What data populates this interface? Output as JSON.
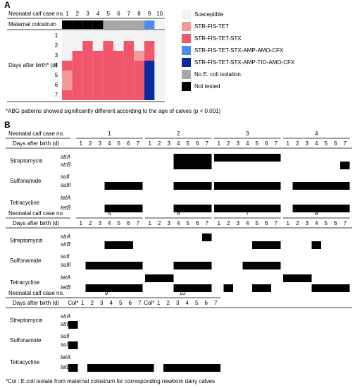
{
  "panel_a": {
    "label": "A",
    "header": "Neonatal calf case no.",
    "cases": [
      1,
      2,
      3,
      4,
      5,
      6,
      7,
      8,
      9,
      10
    ],
    "colostrum_label": "Maternal colostrum",
    "colostrum": [
      6,
      6,
      6,
      6,
      5,
      5,
      5,
      5,
      3,
      0
    ],
    "days_label": "Days after birth* (d)",
    "days": [
      1,
      2,
      3,
      4,
      5,
      6,
      7
    ],
    "grid": [
      [
        0,
        0,
        0,
        0,
        0,
        0,
        0,
        0,
        0,
        0
      ],
      [
        0,
        0,
        2,
        0,
        2,
        0,
        2,
        0,
        2,
        0
      ],
      [
        0,
        2,
        2,
        2,
        2,
        2,
        2,
        1,
        2,
        0
      ],
      [
        2,
        2,
        2,
        2,
        2,
        2,
        2,
        2,
        4,
        0
      ],
      [
        1,
        2,
        2,
        2,
        2,
        2,
        2,
        2,
        4,
        0
      ],
      [
        1,
        2,
        2,
        2,
        2,
        2,
        2,
        2,
        4,
        0
      ],
      [
        2,
        2,
        2,
        2,
        2,
        2,
        2,
        2,
        4,
        0
      ]
    ],
    "legend": [
      {
        "name": "Susceptible",
        "color": "#f3f3f3"
      },
      {
        "name": "STR-FIS-TET",
        "color": "#f59a9a"
      },
      {
        "name": "STR-FIS-TET-STX",
        "color": "#f0566c"
      },
      {
        "name": "STR-FIS-TET-STX-AMP-AMO-CFX",
        "color": "#4a8cf0"
      },
      {
        "name": "STR-FIS-TET-STX-AMP-TIO-AMO-CFX",
        "color": "#0c2aa0"
      },
      {
        "name": "No E. coli isolation",
        "color": "#a8a8a8"
      },
      {
        "name": "Not tested",
        "color": "#000000"
      }
    ],
    "footnote": "*ABG patterns showed significantly different according to the age of calves (p < 0.001)"
  },
  "panel_b": {
    "label": "B",
    "header": "Neonatal calf case no.",
    "days_label": "Days after birth (d)",
    "days": [
      1,
      2,
      3,
      4,
      5,
      6,
      7
    ],
    "col_label": "Col*",
    "classes": [
      {
        "name": "Streptomycin",
        "genes": [
          "strA",
          "strB"
        ]
      },
      {
        "name": "Sulfonamide",
        "genes": [
          "sulI",
          "sulII"
        ]
      },
      {
        "name": "Tetracycline",
        "genes": [
          "tetA",
          "tetB"
        ]
      }
    ],
    "blocks": [
      {
        "calves": [
          {
            "case": 1,
            "genes": [
              [
                0,
                0,
                0,
                0,
                0,
                0,
                0
              ],
              [
                0,
                0,
                0,
                0,
                0,
                0,
                0
              ],
              [
                0,
                0,
                0,
                0,
                0,
                0,
                0
              ],
              [
                0,
                0,
                0,
                1,
                1,
                1,
                1
              ],
              [
                0,
                0,
                0,
                0,
                0,
                0,
                0
              ],
              [
                0,
                0,
                0,
                1,
                1,
                1,
                1
              ]
            ]
          },
          {
            "case": 2,
            "genes": [
              [
                0,
                0,
                0,
                1,
                1,
                1,
                1
              ],
              [
                0,
                0,
                0,
                1,
                1,
                1,
                1
              ],
              [
                0,
                0,
                0,
                0,
                0,
                0,
                0
              ],
              [
                0,
                0,
                0,
                1,
                1,
                1,
                1
              ],
              [
                0,
                0,
                0,
                0,
                0,
                0,
                0
              ],
              [
                0,
                0,
                0,
                1,
                1,
                1,
                1
              ]
            ]
          },
          {
            "case": 3,
            "genes": [
              [
                1,
                1,
                1,
                1,
                1,
                1,
                1
              ],
              [
                0,
                0,
                0,
                0,
                0,
                0,
                0
              ],
              [
                0,
                0,
                0,
                0,
                0,
                0,
                0
              ],
              [
                1,
                1,
                1,
                1,
                1,
                1,
                1
              ],
              [
                0,
                0,
                0,
                0,
                0,
                0,
                0
              ],
              [
                1,
                1,
                1,
                1,
                1,
                1,
                1
              ]
            ]
          },
          {
            "case": 4,
            "genes": [
              [
                0,
                0,
                0,
                0,
                0,
                0,
                0
              ],
              [
                0,
                0,
                0,
                0,
                0,
                0,
                1
              ],
              [
                0,
                0,
                0,
                0,
                0,
                0,
                0
              ],
              [
                0,
                1,
                1,
                1,
                1,
                1,
                1
              ],
              [
                0,
                0,
                0,
                0,
                0,
                0,
                0
              ],
              [
                0,
                1,
                1,
                1,
                1,
                1,
                1
              ]
            ]
          }
        ]
      },
      {
        "calves": [
          {
            "case": 5,
            "genes": [
              [
                0,
                0,
                0,
                0,
                0,
                0,
                0
              ],
              [
                0,
                0,
                0,
                1,
                1,
                1,
                0
              ],
              [
                0,
                0,
                0,
                0,
                0,
                0,
                0
              ],
              [
                0,
                1,
                1,
                1,
                1,
                1,
                1
              ],
              [
                0,
                0,
                0,
                0,
                0,
                0,
                0
              ],
              [
                0,
                1,
                1,
                1,
                1,
                1,
                1
              ]
            ]
          },
          {
            "case": 6,
            "genes": [
              [
                0,
                0,
                0,
                0,
                0,
                0,
                1
              ],
              [
                0,
                0,
                0,
                0,
                0,
                0,
                0
              ],
              [
                0,
                0,
                0,
                0,
                0,
                0,
                0
              ],
              [
                0,
                0,
                0,
                1,
                1,
                1,
                1
              ],
              [
                1,
                1,
                1,
                0,
                0,
                0,
                0
              ],
              [
                0,
                0,
                0,
                1,
                1,
                1,
                1
              ]
            ]
          },
          {
            "case": 7,
            "genes": [
              [
                0,
                0,
                0,
                0,
                0,
                0,
                0
              ],
              [
                0,
                0,
                0,
                0,
                1,
                1,
                1
              ],
              [
                0,
                0,
                0,
                0,
                0,
                0,
                0
              ],
              [
                0,
                0,
                0,
                1,
                1,
                1,
                1
              ],
              [
                0,
                0,
                0,
                0,
                0,
                0,
                0
              ],
              [
                0,
                1,
                0,
                0,
                1,
                1,
                0
              ]
            ]
          },
          {
            "case": 8,
            "genes": [
              [
                0,
                0,
                0,
                0,
                0,
                0,
                0
              ],
              [
                0,
                0,
                0,
                1,
                0,
                0,
                0
              ],
              [
                0,
                0,
                0,
                0,
                0,
                0,
                0
              ],
              [
                0,
                0,
                0,
                0,
                0,
                0,
                0
              ],
              [
                1,
                1,
                1,
                0,
                0,
                0,
                0
              ],
              [
                0,
                0,
                0,
                1,
                1,
                1,
                1
              ]
            ]
          }
        ]
      },
      {
        "calves": [
          {
            "case": 9,
            "genes": [
              [
                0,
                0,
                0,
                0,
                0,
                0,
                0,
                0
              ],
              [
                1,
                0,
                0,
                0,
                0,
                0,
                0,
                0
              ],
              [
                0,
                0,
                0,
                0,
                0,
                0,
                0,
                0
              ],
              [
                1,
                0,
                0,
                0,
                0,
                0,
                0,
                0
              ],
              [
                0,
                0,
                0,
                0,
                0,
                0,
                0,
                0
              ],
              [
                1,
                0,
                1,
                1,
                1,
                1,
                1,
                1
              ]
            ]
          },
          {
            "case": 10,
            "genes": [
              [
                0,
                0,
                0,
                0,
                0,
                0,
                0,
                0
              ],
              [
                0,
                0,
                0,
                0,
                0,
                0,
                0,
                0
              ],
              [
                0,
                0,
                0,
                0,
                0,
                0,
                0,
                0
              ],
              [
                0,
                0,
                0,
                0,
                0,
                0,
                0,
                0
              ],
              [
                0,
                0,
                0,
                0,
                0,
                0,
                0,
                0
              ],
              [
                1,
                0,
                1,
                1,
                1,
                1,
                1,
                1
              ]
            ]
          }
        ]
      }
    ],
    "footnote": "*Col : E.coli isolate from maternal colostrum for corresponding newborn dairy calves"
  }
}
